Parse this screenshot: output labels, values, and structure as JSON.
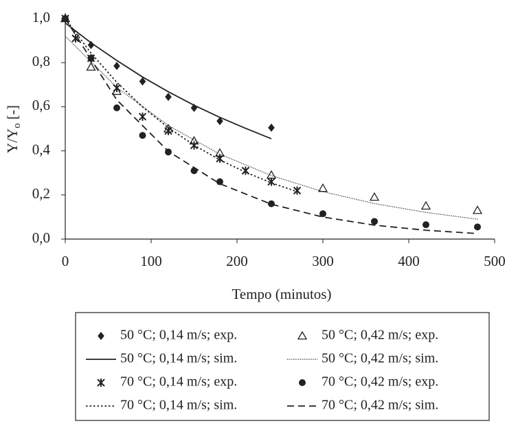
{
  "chart_data": {
    "type": "scatter-line",
    "x_label": "Tempo (minutos)",
    "y_label": {
      "main": "Y/Y",
      "sub": "o",
      "tail": " [-]"
    },
    "xlim": [
      0,
      500
    ],
    "xticks": [
      0,
      100,
      200,
      300,
      400,
      500
    ],
    "ylim": [
      0,
      1.0
    ],
    "yticks": [
      {
        "value": 0,
        "label": "0,0"
      },
      {
        "value": 0.2,
        "label": "0,2"
      },
      {
        "value": 0.4,
        "label": "0,4"
      },
      {
        "value": 0.6,
        "label": "0,6"
      },
      {
        "value": 0.8,
        "label": "0,8"
      },
      {
        "value": 1.0,
        "label": "1,0"
      }
    ],
    "series": [
      {
        "name": "50 °C; 0,14 m/s; exp.",
        "color": "#222222",
        "marker": "diamond",
        "x": [
          0,
          30,
          60,
          90,
          120,
          150,
          180,
          240
        ],
        "values": [
          1.0,
          0.88,
          0.785,
          0.715,
          0.645,
          0.595,
          0.535,
          0.505
        ]
      },
      {
        "name": "50 °C; 0,42 m/s; exp.",
        "color": "#222222",
        "marker": "triangle",
        "x": [
          0,
          30,
          60,
          120,
          150,
          180,
          240,
          300,
          360,
          420,
          480
        ],
        "values": [
          1.0,
          0.78,
          0.67,
          0.5,
          0.445,
          0.39,
          0.29,
          0.23,
          0.19,
          0.15,
          0.13
        ]
      },
      {
        "name": "50 °C; 0,14 m/s; sim.",
        "color": "#222222",
        "dash": "solid",
        "x": [
          0,
          30,
          60,
          90,
          120,
          150,
          180,
          210,
          240
        ],
        "values": [
          0.98,
          0.89,
          0.81,
          0.735,
          0.668,
          0.607,
          0.552,
          0.502,
          0.455
        ]
      },
      {
        "name": "50 °C; 0,42 m/s; sim.",
        "color": "#222222",
        "dash": "fine-dotted",
        "x": [
          0,
          60,
          120,
          180,
          240,
          300,
          360,
          420,
          480
        ],
        "values": [
          0.92,
          0.688,
          0.515,
          0.385,
          0.288,
          0.215,
          0.161,
          0.121,
          0.09
        ]
      },
      {
        "name": "70 °C; 0,14 m/s; exp.",
        "color": "#222222",
        "marker": "asterisk",
        "x": [
          0,
          12,
          30,
          60,
          90,
          120,
          150,
          180,
          210,
          240,
          270
        ],
        "values": [
          1.0,
          0.91,
          0.82,
          0.685,
          0.555,
          0.49,
          0.425,
          0.365,
          0.31,
          0.26,
          0.22
        ]
      },
      {
        "name": "70 °C; 0,42 m/s; exp.",
        "color": "#222222",
        "marker": "circle",
        "x": [
          0,
          30,
          60,
          90,
          120,
          150,
          180,
          240,
          300,
          360,
          420,
          480
        ],
        "values": [
          1.0,
          0.82,
          0.595,
          0.47,
          0.395,
          0.31,
          0.26,
          0.16,
          0.115,
          0.08,
          0.065,
          0.055
        ]
      },
      {
        "name": "70 °C; 0,14 m/s; sim.",
        "color": "#222222",
        "dash": "dotted",
        "x": [
          0,
          30,
          60,
          90,
          120,
          150,
          180,
          210,
          240,
          270
        ],
        "values": [
          1.0,
          0.843,
          0.711,
          0.599,
          0.505,
          0.426,
          0.359,
          0.303,
          0.255,
          0.215
        ]
      },
      {
        "name": "70 °C; 0,42 m/s; sim.",
        "color": "#222222",
        "dash": "dashed",
        "x": [
          0,
          60,
          120,
          180,
          240,
          300,
          360,
          420,
          480
        ],
        "values": [
          1.0,
          0.631,
          0.398,
          0.251,
          0.158,
          0.1,
          0.063,
          0.04,
          0.025
        ]
      }
    ]
  }
}
